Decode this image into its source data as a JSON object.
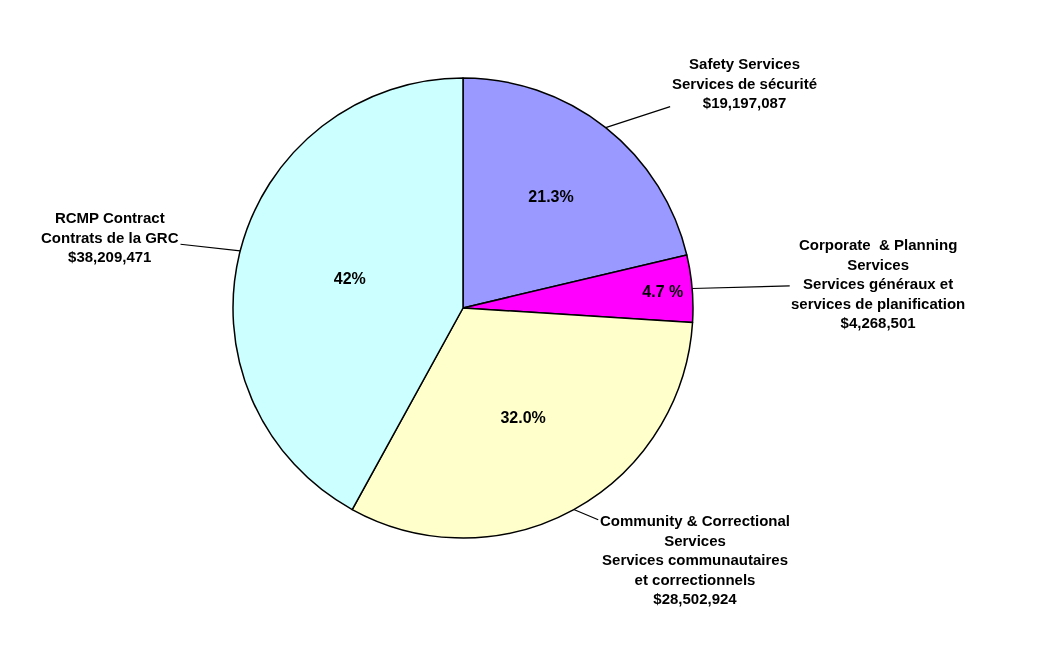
{
  "chart_data": {
    "type": "pie",
    "categories": [
      "Safety Services\nServices de sécurité\n$19,197,087",
      "Corporate  & Planning\nServices\nServices généraux et\nservices de planification\n$4,268,501",
      "Community & Correctional\nServices\nServices communautaires\net correctionnels\n$28,502,924",
      "RCMP Contract\nContrats de la GRC\n$38,209,471"
    ],
    "values": [
      21.3,
      4.7,
      32.0,
      42
    ],
    "colors": [
      "#9999ff",
      "#ff00ff",
      "#ffffcc",
      "#ccffff"
    ],
    "value_labels": [
      "21.3%",
      "4.7 %",
      "32.0%",
      "42%"
    ]
  }
}
